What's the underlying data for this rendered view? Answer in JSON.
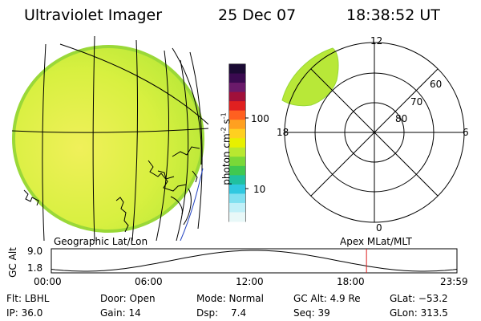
{
  "header": {
    "title": "Ultraviolet Imager",
    "date": "25 Dec 07",
    "time": "18:38:52 UT"
  },
  "colorbar": {
    "label": "photon cm^-2 s^-1",
    "ticks": [
      "100",
      "10"
    ],
    "scale": "log",
    "colors": [
      "#1a0a33",
      "#3a0a50",
      "#6a1a6a",
      "#a0103a",
      "#e02020",
      "#ff6020",
      "#ffa020",
      "#ffd020",
      "#e8f000",
      "#b8e830",
      "#7ad838",
      "#40c850",
      "#20c0a0",
      "#30c8e0",
      "#80e0f0",
      "#c0f0f8",
      "#e8f8f8"
    ]
  },
  "left_panel": {
    "label": "Geographic Lat/Lon",
    "fill_color": "#d6f040"
  },
  "right_panel": {
    "label": "Apex MLat/MLT",
    "mlt_labels": {
      "top": "12",
      "left": "18",
      "right": "6",
      "bottom": "0"
    },
    "lat_labels": [
      "60",
      "70",
      "80"
    ]
  },
  "timeline": {
    "axis_label": "GC Alt",
    "y_ticks": [
      "9.0",
      "1.8"
    ],
    "x_ticks": [
      "00:00",
      "06:00",
      "12:00",
      "18:00",
      "23:59"
    ],
    "marker_time_hours": 18.648,
    "marker_color": "#e02020"
  },
  "info": {
    "flt": "Flt: LBHL",
    "door": "Door: Open",
    "mode": "Mode: Normal",
    "gc_alt": "GC Alt: 4.9 Re",
    "glat": "GLat: −53.2",
    "ip": "IP: 36.0",
    "gain": "Gain: 14",
    "dsp_label": "Dsp:",
    "dsp_value": "7.4",
    "seq": "Seq: 39",
    "glon": "GLon: 313.5"
  }
}
